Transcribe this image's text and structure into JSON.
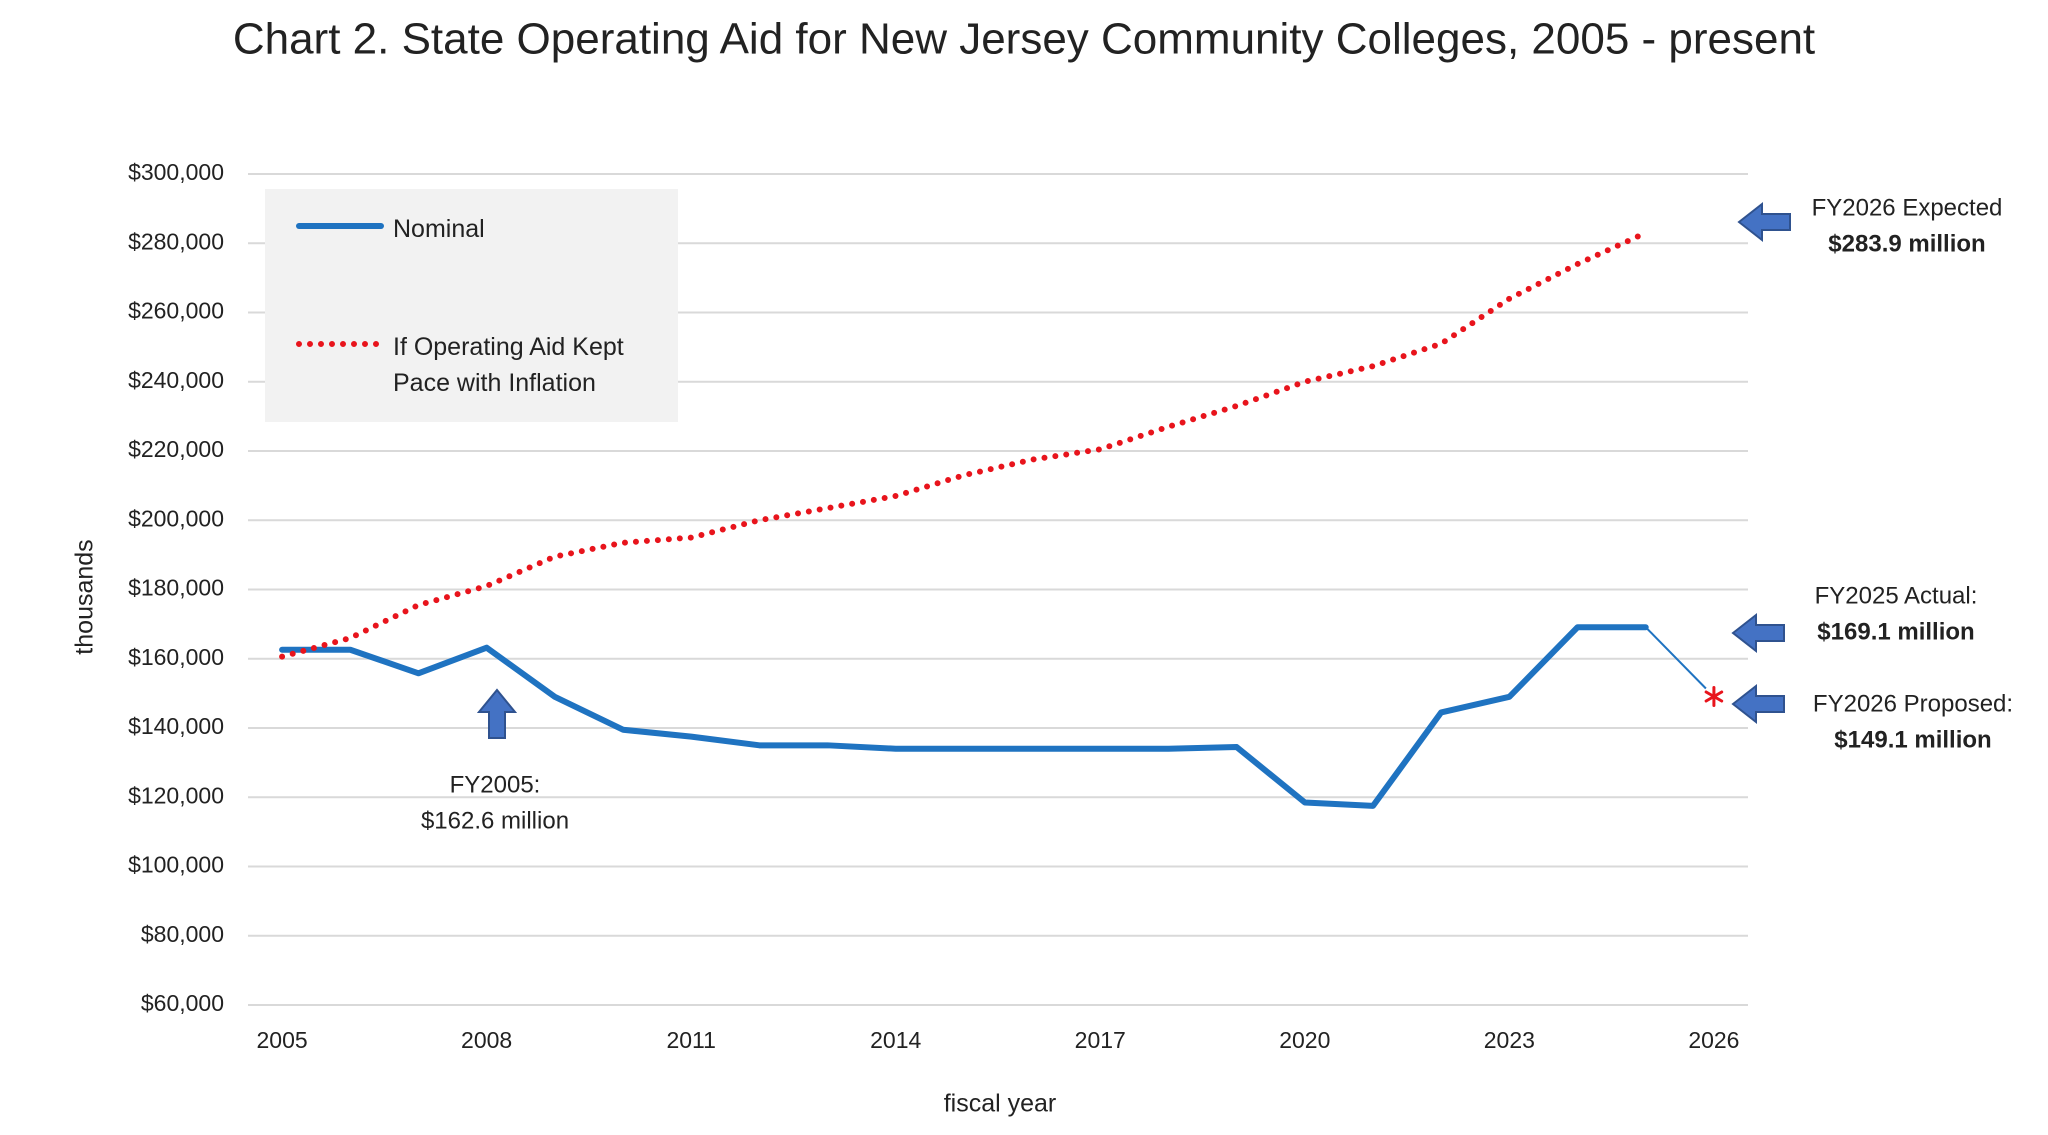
{
  "chart_data": {
    "type": "line",
    "title": "Chart 2. State Operating Aid for New Jersey Community Colleges, 2005 - present",
    "x_label": "fiscal year",
    "y_label": "thousands",
    "x": [
      2005,
      2006,
      2007,
      2008,
      2009,
      2010,
      2011,
      2012,
      2013,
      2014,
      2015,
      2016,
      2017,
      2018,
      2019,
      2020,
      2021,
      2022,
      2023,
      2024,
      2025
    ],
    "series": [
      {
        "name": "Nominal",
        "color": "#1f73c1",
        "style": "solid",
        "values": [
          162600,
          162600,
          155800,
          163200,
          149000,
          139500,
          137500,
          135000,
          135000,
          134000,
          134000,
          134000,
          134000,
          134000,
          134500,
          118500,
          117500,
          144500,
          149000,
          169100,
          169100
        ]
      },
      {
        "name": "If Operating Aid Kept Pace with Inflation",
        "color": "#e8141c",
        "style": "dotted",
        "values": [
          160600,
          166000,
          175500,
          181000,
          189500,
          193500,
          195000,
          200000,
          203500,
          207000,
          213000,
          217500,
          220500,
          227000,
          233000,
          240000,
          244500,
          251000,
          264000,
          274000,
          283000
        ]
      }
    ],
    "proposed": {
      "x": 2026,
      "value": 149100,
      "color": "#e8141c"
    },
    "xlim": [
      2004.5,
      2026.5
    ],
    "xticks": [
      2005,
      2008,
      2011,
      2014,
      2017,
      2020,
      2023,
      2026
    ],
    "ylim": [
      60000,
      300000
    ],
    "yticks": [
      {
        "value": 60000,
        "label": "$60,000"
      },
      {
        "value": 80000,
        "label": "$80,000"
      },
      {
        "value": 100000,
        "label": "$100,000"
      },
      {
        "value": 120000,
        "label": "$120,000"
      },
      {
        "value": 140000,
        "label": "$140,000"
      },
      {
        "value": 160000,
        "label": "$160,000"
      },
      {
        "value": 180000,
        "label": "$180,000"
      },
      {
        "value": 200000,
        "label": "$200,000"
      },
      {
        "value": 220000,
        "label": "$220,000"
      },
      {
        "value": 240000,
        "label": "$240,000"
      },
      {
        "value": 260000,
        "label": "$260,000"
      },
      {
        "value": 280000,
        "label": "$280,000"
      },
      {
        "value": 300000,
        "label": "$300,000"
      }
    ],
    "grid": true,
    "legend": "upper left",
    "annotations": [
      {
        "lines": [
          "FY2026 Expected",
          "$283.9 million"
        ]
      },
      {
        "lines": [
          "FY2025 Actual:",
          "$169.1 million"
        ]
      },
      {
        "lines": [
          "FY2026 Proposed:",
          "$149.1 million"
        ]
      },
      {
        "lines": [
          "FY2005:",
          "$162.6 million"
        ]
      }
    ]
  }
}
